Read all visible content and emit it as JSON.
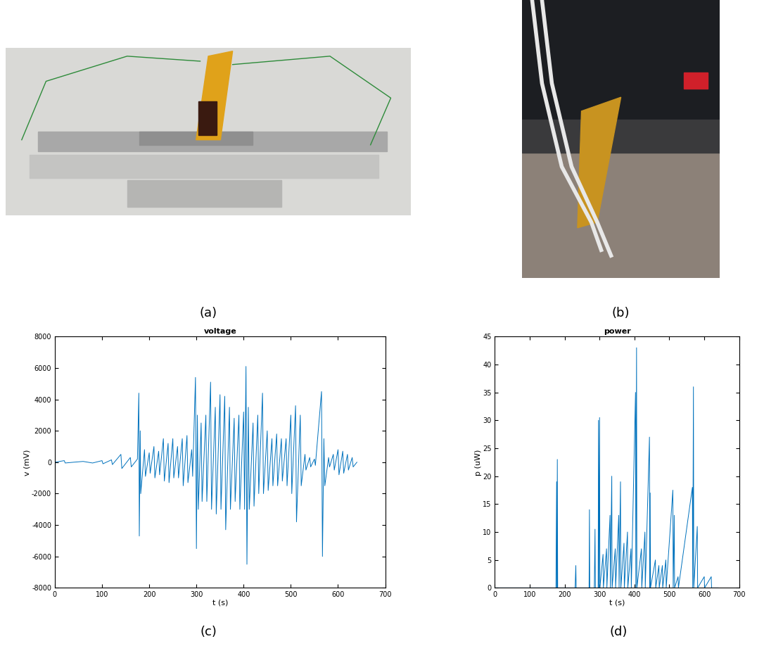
{
  "photos": [
    {
      "panel_label": "(a)"
    },
    {
      "panel_label": "(b)"
    }
  ],
  "chart_data": [
    {
      "type": "line",
      "panel_label": "(c)",
      "title": "voltage",
      "x_label": "t (s)",
      "y_label": "v (mV)",
      "color": "#0072bd",
      "grid": false,
      "xlim": [
        0,
        700
      ],
      "xticks": [
        0,
        100,
        200,
        300,
        400,
        500,
        600,
        700
      ],
      "ylim": [
        -8000,
        8000
      ],
      "yticks": [
        -8000,
        -6000,
        -4000,
        -2000,
        0,
        2000,
        4000,
        6000,
        8000
      ],
      "x": [
        0,
        20,
        22,
        40,
        60,
        80,
        100,
        102,
        120,
        122,
        140,
        142,
        160,
        162,
        175,
        178,
        179,
        181,
        182,
        190,
        192,
        200,
        202,
        210,
        212,
        220,
        222,
        230,
        232,
        240,
        242,
        250,
        252,
        260,
        262,
        270,
        272,
        280,
        282,
        290,
        292,
        298,
        300,
        302,
        304,
        310,
        312,
        320,
        322,
        330,
        332,
        340,
        342,
        350,
        352,
        360,
        362,
        370,
        372,
        380,
        382,
        390,
        392,
        400,
        402,
        405,
        407,
        410,
        412,
        420,
        422,
        430,
        432,
        440,
        442,
        450,
        452,
        460,
        462,
        470,
        472,
        480,
        482,
        490,
        492,
        500,
        502,
        510,
        512,
        520,
        522,
        530,
        532,
        540,
        542,
        550,
        552,
        565,
        567,
        570,
        572,
        580,
        582,
        590,
        592,
        600,
        602,
        610,
        612,
        620,
        622,
        630,
        632,
        640
      ],
      "values": [
        0,
        100,
        -50,
        0,
        50,
        -50,
        100,
        -100,
        150,
        -150,
        500,
        -400,
        300,
        -300,
        200,
        4400,
        -4700,
        2000,
        -2000,
        800,
        -900,
        600,
        -700,
        1000,
        -1000,
        700,
        -800,
        1500,
        -1200,
        1200,
        -1300,
        1500,
        -1000,
        1000,
        -1000,
        1500,
        -1500,
        1700,
        -1300,
        800,
        -900,
        5400,
        -5500,
        3000,
        -3000,
        2500,
        -2500,
        3000,
        -2500,
        5100,
        -3000,
        3500,
        -3300,
        4300,
        -3000,
        4200,
        -4300,
        3500,
        -3000,
        2800,
        -2500,
        3000,
        -3000,
        3200,
        -3000,
        6100,
        -6500,
        3500,
        -3000,
        2500,
        -2800,
        3000,
        -2000,
        4400,
        -2000,
        2000,
        -1800,
        1500,
        -1500,
        1800,
        -1500,
        1500,
        -1200,
        1500,
        -1500,
        3000,
        -2000,
        3600,
        -3800,
        3000,
        -1500,
        500,
        -500,
        300,
        -300,
        200,
        -200,
        4500,
        -6000,
        1500,
        -1500,
        300,
        -300,
        500,
        -500,
        800,
        -800,
        700,
        -700,
        500,
        -500,
        300,
        -300,
        0
      ]
    },
    {
      "type": "line",
      "panel_label": "(d)",
      "title": "power",
      "x_label": "t (s)",
      "y_label": "p (uW)",
      "color": "#0072bd",
      "grid": false,
      "xlim": [
        0,
        700
      ],
      "xticks": [
        0,
        100,
        200,
        300,
        400,
        500,
        600,
        700
      ],
      "ylim": [
        0,
        45
      ],
      "yticks": [
        0,
        5,
        10,
        15,
        20,
        25,
        30,
        35,
        40,
        45
      ],
      "x": [
        0,
        175,
        177,
        178,
        179,
        180,
        230,
        232,
        233,
        270,
        271,
        272,
        285,
        287,
        288,
        296,
        297,
        298,
        300,
        301,
        310,
        311,
        320,
        321,
        330,
        331,
        335,
        336,
        345,
        346,
        355,
        356,
        360,
        361,
        370,
        371,
        380,
        381,
        390,
        391,
        403,
        404,
        406,
        407,
        420,
        421,
        430,
        431,
        443,
        444,
        445,
        446,
        460,
        461,
        470,
        471,
        480,
        481,
        490,
        491,
        510,
        511,
        514,
        515,
        525,
        526,
        566,
        567,
        569,
        570,
        580,
        581,
        600,
        601,
        620,
        621,
        640
      ],
      "values": [
        0,
        0,
        19,
        0,
        23,
        0,
        0,
        4,
        0,
        0,
        14,
        0,
        0,
        10.5,
        0,
        0,
        30,
        0,
        30.5,
        0,
        6,
        0,
        7,
        0,
        13,
        0,
        20,
        0,
        7,
        0,
        13,
        0,
        19,
        0,
        8,
        0,
        10,
        0,
        7,
        0,
        35,
        0,
        43,
        0,
        7,
        0,
        10,
        0,
        27,
        0,
        17,
        0,
        5,
        0,
        4,
        0,
        4,
        0,
        5,
        0,
        17.5,
        0,
        13,
        0,
        2,
        0,
        18,
        0,
        36,
        0,
        11,
        0,
        2,
        0,
        2,
        0,
        0
      ]
    }
  ]
}
